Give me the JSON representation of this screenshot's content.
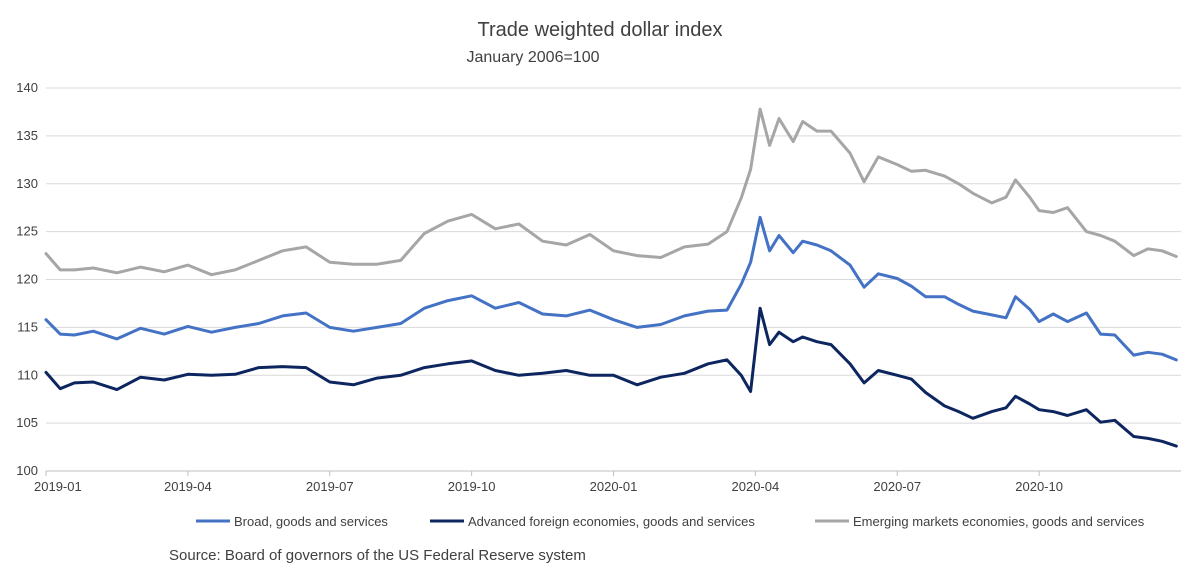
{
  "chart_data": {
    "type": "line",
    "title": "Trade weighted dollar index",
    "subtitle": "January 2006=100",
    "source": "Source: Board of governors of the US Federal Reserve system",
    "ylim": [
      100,
      140
    ],
    "yticks": [
      {
        "value": 100,
        "label": "100"
      },
      {
        "value": 105,
        "label": "105"
      },
      {
        "value": 110,
        "label": "110"
      },
      {
        "value": 115,
        "label": "115"
      },
      {
        "value": 120,
        "label": "120"
      },
      {
        "value": 125,
        "label": "125"
      },
      {
        "value": 130,
        "label": "130"
      },
      {
        "value": 135,
        "label": "135"
      },
      {
        "value": 140,
        "label": "140"
      }
    ],
    "xlim": [
      0,
      24
    ],
    "xticks": [
      {
        "value": 0,
        "label": "2019-01"
      },
      {
        "value": 3,
        "label": "2019-04"
      },
      {
        "value": 6,
        "label": "2019-07"
      },
      {
        "value": 9,
        "label": "2019-10"
      },
      {
        "value": 12,
        "label": "2020-01"
      },
      {
        "value": 15,
        "label": "2020-04"
      },
      {
        "value": 18,
        "label": "2020-07"
      },
      {
        "value": 21,
        "label": "2020-10"
      }
    ],
    "series": [
      {
        "name": "Broad, goods and services",
        "color": "#4472C4",
        "x": [
          0,
          0.3,
          0.6,
          1.0,
          1.5,
          2.0,
          2.5,
          3.0,
          3.5,
          4.0,
          4.5,
          5.0,
          5.5,
          6.0,
          6.5,
          7.0,
          7.5,
          8.0,
          8.5,
          9.0,
          9.5,
          10.0,
          10.5,
          11.0,
          11.5,
          12.0,
          12.5,
          13.0,
          13.5,
          14.0,
          14.4,
          14.7,
          14.9,
          15.1,
          15.3,
          15.5,
          15.8,
          16.0,
          16.3,
          16.6,
          17.0,
          17.3,
          17.6,
          18.0,
          18.3,
          18.6,
          19.0,
          19.3,
          19.6,
          20.0,
          20.3,
          20.5,
          20.8,
          21.0,
          21.3,
          21.6,
          22.0,
          22.3,
          22.6,
          23.0,
          23.3,
          23.6,
          23.9
        ],
        "values": [
          115.8,
          114.3,
          114.2,
          114.6,
          113.8,
          114.9,
          114.3,
          115.1,
          114.5,
          115.0,
          115.4,
          116.2,
          116.5,
          115.0,
          114.6,
          115.0,
          115.4,
          117.0,
          117.8,
          118.3,
          117.0,
          117.6,
          116.4,
          116.2,
          116.8,
          115.8,
          115.0,
          115.3,
          116.2,
          116.7,
          116.8,
          119.5,
          121.8,
          126.5,
          123.0,
          124.6,
          122.8,
          124.0,
          123.6,
          123.0,
          121.5,
          119.2,
          120.6,
          120.1,
          119.3,
          118.2,
          118.2,
          117.4,
          116.7,
          116.3,
          116.0,
          118.2,
          116.9,
          115.6,
          116.4,
          115.6,
          116.5,
          114.3,
          114.2,
          112.1,
          112.4,
          112.2,
          111.6
        ]
      },
      {
        "name": "Advanced foreign economies, goods and services",
        "color": "#0D2660",
        "x": [
          0,
          0.3,
          0.6,
          1.0,
          1.5,
          2.0,
          2.5,
          3.0,
          3.5,
          4.0,
          4.5,
          5.0,
          5.5,
          6.0,
          6.5,
          7.0,
          7.5,
          8.0,
          8.5,
          9.0,
          9.5,
          10.0,
          10.5,
          11.0,
          11.5,
          12.0,
          12.5,
          13.0,
          13.5,
          14.0,
          14.4,
          14.7,
          14.9,
          15.1,
          15.3,
          15.5,
          15.8,
          16.0,
          16.3,
          16.6,
          17.0,
          17.3,
          17.6,
          18.0,
          18.3,
          18.6,
          19.0,
          19.3,
          19.6,
          20.0,
          20.3,
          20.5,
          20.8,
          21.0,
          21.3,
          21.6,
          22.0,
          22.3,
          22.6,
          23.0,
          23.3,
          23.6,
          23.9
        ],
        "values": [
          110.3,
          108.6,
          109.2,
          109.3,
          108.5,
          109.8,
          109.5,
          110.1,
          110.0,
          110.1,
          110.8,
          110.9,
          110.8,
          109.3,
          109.0,
          109.7,
          110.0,
          110.8,
          111.2,
          111.5,
          110.5,
          110.0,
          110.2,
          110.5,
          110.0,
          110.0,
          109.0,
          109.8,
          110.2,
          111.2,
          111.6,
          110.0,
          108.3,
          117.0,
          113.2,
          114.5,
          113.5,
          114.0,
          113.5,
          113.2,
          111.2,
          109.2,
          110.5,
          110.0,
          109.6,
          108.2,
          106.8,
          106.2,
          105.5,
          106.2,
          106.6,
          107.8,
          107.0,
          106.4,
          106.2,
          105.8,
          106.4,
          105.1,
          105.3,
          103.6,
          103.4,
          103.1,
          102.6
        ]
      },
      {
        "name": "Emerging markets economies, goods and services",
        "color": "#A6A6A6",
        "x": [
          0,
          0.3,
          0.6,
          1.0,
          1.5,
          2.0,
          2.5,
          3.0,
          3.5,
          4.0,
          4.5,
          5.0,
          5.5,
          6.0,
          6.5,
          7.0,
          7.5,
          8.0,
          8.5,
          9.0,
          9.5,
          10.0,
          10.5,
          11.0,
          11.5,
          12.0,
          12.5,
          13.0,
          13.5,
          14.0,
          14.4,
          14.7,
          14.9,
          15.1,
          15.3,
          15.5,
          15.8,
          16.0,
          16.3,
          16.6,
          17.0,
          17.3,
          17.6,
          18.0,
          18.3,
          18.6,
          19.0,
          19.3,
          19.6,
          20.0,
          20.3,
          20.5,
          20.8,
          21.0,
          21.3,
          21.6,
          22.0,
          22.3,
          22.6,
          23.0,
          23.3,
          23.6,
          23.9
        ],
        "values": [
          122.7,
          121.0,
          121.0,
          121.2,
          120.7,
          121.3,
          120.8,
          121.5,
          120.5,
          121.0,
          122.0,
          123.0,
          123.4,
          121.8,
          121.6,
          121.6,
          122.0,
          124.8,
          126.1,
          126.8,
          125.3,
          125.8,
          124.0,
          123.6,
          124.7,
          123.0,
          122.5,
          122.3,
          123.4,
          123.7,
          125.0,
          128.5,
          131.5,
          137.8,
          134.0,
          136.8,
          134.4,
          136.5,
          135.5,
          135.5,
          133.2,
          130.2,
          132.8,
          132.0,
          131.3,
          131.4,
          130.8,
          130.0,
          129.0,
          128.0,
          128.6,
          130.4,
          128.6,
          127.2,
          127.0,
          127.5,
          125.0,
          124.6,
          124.0,
          122.5,
          123.2,
          123.0,
          122.4
        ]
      }
    ]
  }
}
